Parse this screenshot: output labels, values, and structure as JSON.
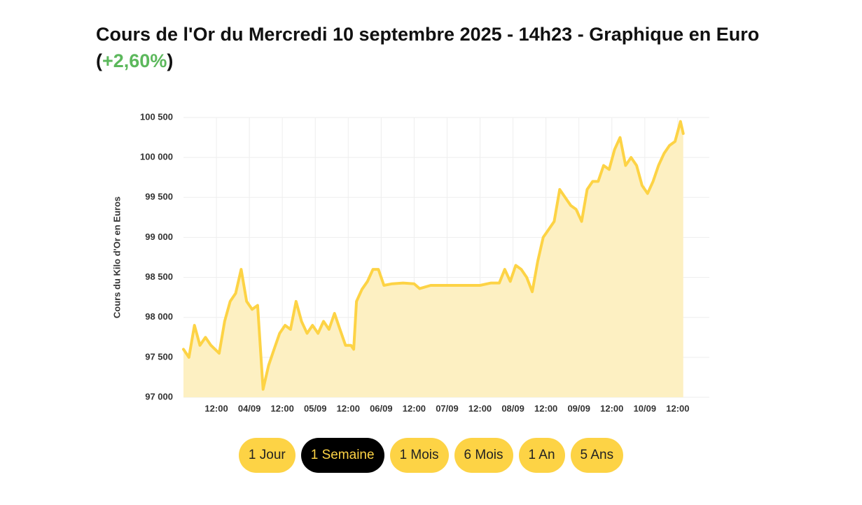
{
  "chart_data": {
    "type": "line",
    "title": "Cours de l'Or du Mercredi 10 septembre 2025 - 14h23 - Graphique en Euro",
    "change": {
      "open": "(",
      "value": "+2,60%",
      "close": ")"
    },
    "ylabel": "Cours du Kilo d'Or en Euros",
    "x": [
      "03/09 00:00",
      "03/09 02:00",
      "03/09 04:00",
      "03/09 06:00",
      "03/09 08:00",
      "03/09 10:00",
      "03/09 13:00",
      "03/09 15:00",
      "03/09 17:00",
      "03/09 19:00",
      "03/09 21:00",
      "03/09 23:00",
      "04/09 01:00",
      "04/09 03:00",
      "04/09 05:00",
      "04/09 07:00",
      "04/09 09:00",
      "04/09 11:00",
      "04/09 13:00",
      "04/09 15:00",
      "04/09 17:00",
      "04/09 19:00",
      "04/09 21:00",
      "04/09 23:00",
      "05/09 01:00",
      "05/09 03:00",
      "05/09 05:00",
      "05/09 07:00",
      "05/09 09:00",
      "05/09 11:00",
      "05/09 13:00",
      "05/09 14:00",
      "05/09 15:00",
      "05/09 17:00",
      "05/09 19:00",
      "05/09 21:00",
      "05/09 23:00",
      "06/09 01:00",
      "06/09 04:00",
      "06/09 08:00",
      "06/09 12:00",
      "06/09 14:00",
      "06/09 18:00",
      "07/09 00:00",
      "07/09 04:00",
      "07/09 08:00",
      "07/09 12:00",
      "07/09 16:00",
      "07/09 19:00",
      "07/09 21:00",
      "07/09 23:00",
      "08/09 01:00",
      "08/09 03:00",
      "08/09 05:00",
      "08/09 07:00",
      "08/09 09:00",
      "08/09 11:00",
      "08/09 13:00",
      "08/09 15:00",
      "08/09 17:00",
      "08/09 19:00",
      "08/09 21:00",
      "08/09 23:00",
      "09/09 01:00",
      "09/09 03:00",
      "09/09 05:00",
      "09/09 07:00",
      "09/09 09:00",
      "09/09 11:00",
      "09/09 13:00",
      "09/09 15:00",
      "09/09 17:00",
      "09/09 19:00",
      "09/09 21:00",
      "09/09 23:00",
      "10/09 01:00",
      "10/09 03:00",
      "10/09 05:00",
      "10/09 07:00",
      "10/09 09:00",
      "10/09 11:00",
      "10/09 13:00",
      "10/09 14:00"
    ],
    "series": [
      {
        "name": "Or",
        "color": "#fdd345",
        "fill": "#fdf0c2",
        "values": [
          97600,
          97500,
          97900,
          97650,
          97750,
          97650,
          97550,
          97950,
          98200,
          98300,
          98600,
          98200,
          98100,
          98150,
          97100,
          97400,
          97600,
          97800,
          97900,
          97850,
          98200,
          97950,
          97800,
          97900,
          97800,
          97950,
          97850,
          98050,
          97850,
          97650,
          97650,
          97600,
          98200,
          98350,
          98450,
          98600,
          98600,
          98400,
          98420,
          98430,
          98420,
          98360,
          98400,
          98400,
          98400,
          98400,
          98400,
          98430,
          98430,
          98600,
          98450,
          98650,
          98600,
          98500,
          98320,
          98700,
          99000,
          99100,
          99200,
          99600,
          99500,
          99400,
          99350,
          99200,
          99600,
          99700,
          99700,
          99900,
          99850,
          100100,
          100250,
          99900,
          100000,
          99900,
          99650,
          99550,
          99700,
          99900,
          100050,
          100150,
          100200,
          100450,
          100300
        ]
      }
    ],
    "xlim": [
      "03/09 00:00",
      "10/09 23:30"
    ],
    "xticks": [
      {
        "value": "03/09 12:00",
        "label": "12:00"
      },
      {
        "value": "04/09 00:00",
        "label": "04/09"
      },
      {
        "value": "04/09 12:00",
        "label": "12:00"
      },
      {
        "value": "05/09 00:00",
        "label": "05/09"
      },
      {
        "value": "05/09 12:00",
        "label": "12:00"
      },
      {
        "value": "06/09 00:00",
        "label": "06/09"
      },
      {
        "value": "06/09 12:00",
        "label": "12:00"
      },
      {
        "value": "07/09 00:00",
        "label": "07/09"
      },
      {
        "value": "07/09 12:00",
        "label": "12:00"
      },
      {
        "value": "08/09 00:00",
        "label": "08/09"
      },
      {
        "value": "08/09 12:00",
        "label": "12:00"
      },
      {
        "value": "09/09 00:00",
        "label": "09/09"
      },
      {
        "value": "09/09 12:00",
        "label": "12:00"
      },
      {
        "value": "10/09 00:00",
        "label": "10/09"
      },
      {
        "value": "10/09 12:00",
        "label": "12:00"
      }
    ],
    "ylim": [
      97000,
      100500
    ],
    "yticks": [
      {
        "value": 97000,
        "label": "97 000"
      },
      {
        "value": 97500,
        "label": "97 500"
      },
      {
        "value": 98000,
        "label": "98 000"
      },
      {
        "value": 98500,
        "label": "98 500"
      },
      {
        "value": 99000,
        "label": "99 000"
      },
      {
        "value": 99500,
        "label": "99 500"
      },
      {
        "value": 100000,
        "label": "100 000"
      },
      {
        "value": 100500,
        "label": "100 500"
      }
    ],
    "grid": true,
    "ranges": [
      "1 Jour",
      "1 Semaine",
      "1 Mois",
      "6 Mois",
      "1 An",
      "5 Ans"
    ],
    "active_range": 1
  }
}
